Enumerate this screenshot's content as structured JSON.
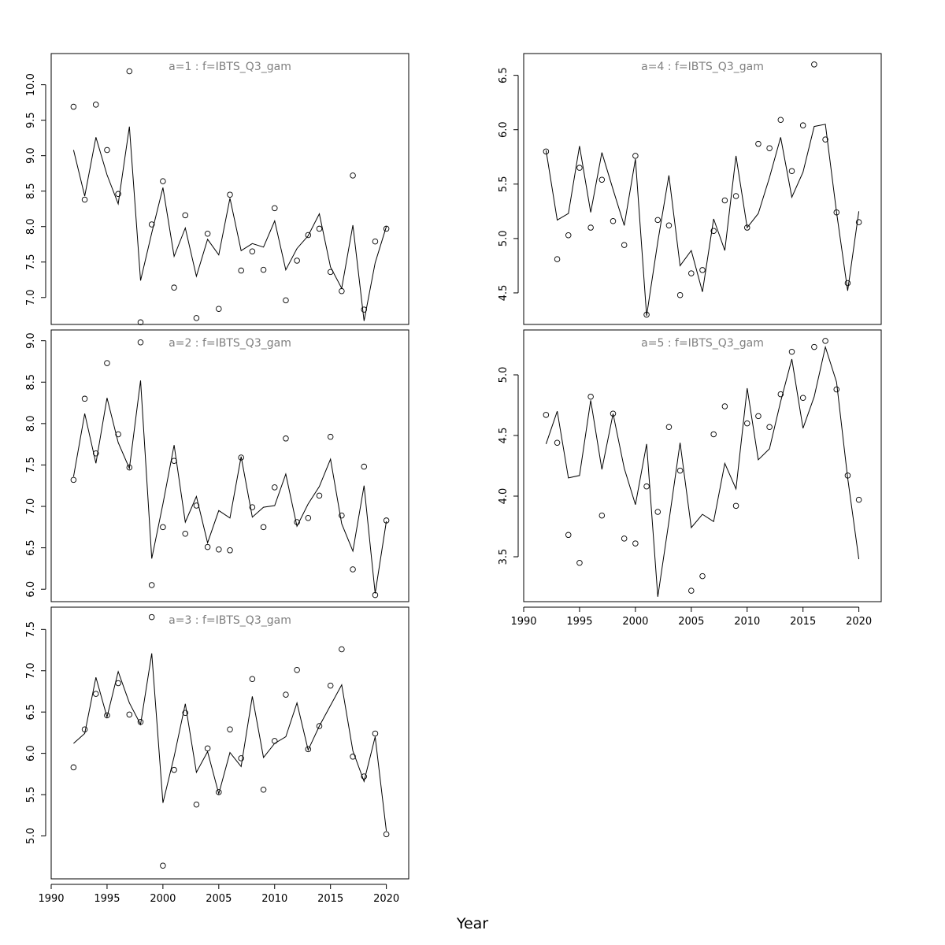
{
  "figure": {
    "xlabel": "Year"
  },
  "chart_data": [
    {
      "type": "scatter",
      "title": "a=1 : f=IBTS_Q3_gam",
      "xlim": [
        1990,
        2022
      ],
      "ylim": [
        6.62,
        10.44
      ],
      "x_ticks": [
        1990,
        1995,
        2000,
        2005,
        2010,
        2015,
        2020
      ],
      "x_ticks_shown": false,
      "y_ticks": [
        7.0,
        7.5,
        8.0,
        8.5,
        9.0,
        9.5,
        10.0
      ],
      "y_tick_labels": [
        "7.0",
        "7.5",
        "8.0",
        "8.5",
        "9.0",
        "9.5",
        "10.0"
      ],
      "series": [
        {
          "kind": "points",
          "x": [
            1992,
            1993,
            1994,
            1995,
            1996,
            1997,
            1998,
            1999,
            2000,
            2001,
            2002,
            2003,
            2004,
            2005,
            2006,
            2007,
            2008,
            2009,
            2010,
            2011,
            2012,
            2013,
            2014,
            2015,
            2016,
            2017,
            2018,
            2019,
            2020
          ],
          "values": [
            9.69,
            8.38,
            9.72,
            9.08,
            8.46,
            10.19,
            6.65,
            8.03,
            8.64,
            7.14,
            8.16,
            6.71,
            7.9,
            6.84,
            8.45,
            7.38,
            7.65,
            7.39,
            8.26,
            6.96,
            7.52,
            7.88,
            7.97,
            7.36,
            7.09,
            8.72,
            6.83,
            7.79,
            7.97
          ]
        },
        {
          "kind": "line",
          "x": [
            1992,
            1993,
            1994,
            1995,
            1996,
            1997,
            1998,
            1999,
            2000,
            2001,
            2002,
            2003,
            2004,
            2005,
            2006,
            2007,
            2008,
            2009,
            2010,
            2011,
            2012,
            2013,
            2014,
            2015,
            2016,
            2017,
            2018,
            2019,
            2020
          ],
          "values": [
            9.08,
            8.43,
            9.26,
            8.73,
            8.32,
            9.41,
            7.24,
            7.91,
            8.55,
            7.58,
            7.98,
            7.3,
            7.82,
            7.6,
            8.4,
            7.66,
            7.76,
            7.71,
            8.08,
            7.39,
            7.69,
            7.87,
            8.18,
            7.43,
            7.13,
            8.02,
            6.67,
            7.49,
            8.0
          ]
        }
      ]
    },
    {
      "type": "scatter",
      "title": "a=2 : f=IBTS_Q3_gam",
      "xlim": [
        1990,
        2022
      ],
      "ylim": [
        5.85,
        9.13
      ],
      "x_ticks": [
        1990,
        1995,
        2000,
        2005,
        2010,
        2015,
        2020
      ],
      "x_ticks_shown": false,
      "y_ticks": [
        6.0,
        6.5,
        7.0,
        7.5,
        8.0,
        8.5,
        9.0
      ],
      "y_tick_labels": [
        "6.0",
        "6.5",
        "7.0",
        "7.5",
        "8.0",
        "8.5",
        "9.0"
      ],
      "series": [
        {
          "kind": "points",
          "x": [
            1992,
            1993,
            1994,
            1995,
            1996,
            1997,
            1998,
            1999,
            2000,
            2001,
            2002,
            2003,
            2004,
            2005,
            2006,
            2007,
            2008,
            2009,
            2010,
            2011,
            2012,
            2013,
            2014,
            2015,
            2016,
            2017,
            2018,
            2019,
            2020
          ],
          "values": [
            7.32,
            8.3,
            7.64,
            8.73,
            7.87,
            7.47,
            8.98,
            6.05,
            6.75,
            7.55,
            6.67,
            7.01,
            6.51,
            6.48,
            6.47,
            7.59,
            6.99,
            6.75,
            7.23,
            7.82,
            6.81,
            6.86,
            7.13,
            7.84,
            6.89,
            6.24,
            7.48,
            5.93,
            6.83
          ]
        },
        {
          "kind": "line",
          "x": [
            1992,
            1993,
            1994,
            1995,
            1996,
            1997,
            1998,
            1999,
            2000,
            2001,
            2002,
            2003,
            2004,
            2005,
            2006,
            2007,
            2008,
            2009,
            2010,
            2011,
            2012,
            2013,
            2014,
            2015,
            2016,
            2017,
            2018,
            2019,
            2020
          ],
          "values": [
            7.36,
            8.12,
            7.52,
            8.31,
            7.77,
            7.46,
            8.52,
            6.37,
            7.03,
            7.74,
            6.81,
            7.12,
            6.56,
            6.95,
            6.86,
            7.6,
            6.87,
            6.99,
            7.01,
            7.39,
            6.76,
            7.03,
            7.24,
            7.57,
            6.79,
            6.46,
            7.25,
            5.95,
            6.82
          ]
        }
      ]
    },
    {
      "type": "scatter",
      "title": "a=3 : f=IBTS_Q3_gam",
      "xlim": [
        1990,
        2022
      ],
      "ylim": [
        4.48,
        7.77
      ],
      "x_ticks": [
        1990,
        1995,
        2000,
        2005,
        2010,
        2015,
        2020
      ],
      "x_tick_labels": [
        "1990",
        "1995",
        "2000",
        "2005",
        "2010",
        "2015",
        "2020"
      ],
      "x_ticks_shown": true,
      "y_ticks": [
        5.0,
        5.5,
        6.0,
        6.5,
        7.0,
        7.5
      ],
      "y_tick_labels": [
        "5.0",
        "5.5",
        "6.0",
        "6.5",
        "7.0",
        "7.5"
      ],
      "series": [
        {
          "kind": "points",
          "x": [
            1992,
            1993,
            1994,
            1995,
            1996,
            1997,
            1998,
            1999,
            2000,
            2001,
            2002,
            2003,
            2004,
            2005,
            2006,
            2007,
            2008,
            2009,
            2010,
            2011,
            2012,
            2013,
            2014,
            2015,
            2016,
            2017,
            2018,
            2019,
            2020
          ],
          "values": [
            5.83,
            6.29,
            6.72,
            6.46,
            6.85,
            6.47,
            6.38,
            7.65,
            4.64,
            5.8,
            6.49,
            5.38,
            6.06,
            5.53,
            6.29,
            5.94,
            6.9,
            5.56,
            6.15,
            6.71,
            7.01,
            6.05,
            6.33,
            6.82,
            7.26,
            5.96,
            5.72,
            6.24,
            5.02
          ]
        },
        {
          "kind": "line",
          "x": [
            1992,
            1993,
            1994,
            1995,
            1996,
            1997,
            1998,
            1999,
            2000,
            2001,
            2002,
            2003,
            2004,
            2005,
            2006,
            2007,
            2008,
            2009,
            2010,
            2011,
            2012,
            2013,
            2014,
            2015,
            2016,
            2017,
            2018,
            2019,
            2020
          ],
          "values": [
            6.12,
            6.24,
            6.92,
            6.44,
            6.99,
            6.61,
            6.35,
            7.21,
            5.4,
            5.96,
            6.6,
            5.77,
            6.02,
            5.51,
            6.01,
            5.84,
            6.69,
            5.95,
            6.12,
            6.2,
            6.61,
            6.04,
            6.33,
            6.58,
            6.83,
            6.03,
            5.66,
            6.2,
            5.06
          ]
        }
      ]
    },
    {
      "type": "scatter",
      "title": "a=4 : f=IBTS_Q3_gam",
      "xlim": [
        1990,
        2022
      ],
      "ylim": [
        4.21,
        6.7
      ],
      "x_ticks": [
        1990,
        1995,
        2000,
        2005,
        2010,
        2015,
        2020
      ],
      "x_ticks_shown": false,
      "y_ticks": [
        4.5,
        5.0,
        5.5,
        6.0,
        6.5
      ],
      "y_tick_labels": [
        "4.5",
        "5.0",
        "5.5",
        "6.0",
        "6.5"
      ],
      "series": [
        {
          "kind": "points",
          "x": [
            1992,
            1993,
            1994,
            1995,
            1996,
            1997,
            1998,
            1999,
            2000,
            2001,
            2002,
            2003,
            2004,
            2005,
            2006,
            2007,
            2008,
            2009,
            2010,
            2011,
            2012,
            2013,
            2014,
            2015,
            2016,
            2017,
            2018,
            2019,
            2020
          ],
          "values": [
            5.8,
            4.81,
            5.03,
            5.65,
            5.1,
            5.54,
            5.16,
            4.94,
            5.76,
            4.3,
            5.17,
            5.12,
            4.48,
            4.68,
            4.71,
            5.07,
            5.35,
            5.39,
            5.1,
            5.87,
            5.83,
            6.09,
            5.62,
            6.04,
            6.6,
            5.91,
            5.24,
            4.59,
            5.15
          ]
        },
        {
          "kind": "line",
          "x": [
            1992,
            1993,
            1994,
            1995,
            1996,
            1997,
            1998,
            1999,
            2000,
            2001,
            2002,
            2003,
            2004,
            2005,
            2006,
            2007,
            2008,
            2009,
            2010,
            2011,
            2012,
            2013,
            2014,
            2015,
            2016,
            2017,
            2018,
            2019,
            2020
          ],
          "values": [
            5.81,
            5.17,
            5.23,
            5.85,
            5.24,
            5.79,
            5.45,
            5.12,
            5.73,
            4.29,
            4.97,
            5.58,
            4.75,
            4.89,
            4.51,
            5.18,
            4.89,
            5.76,
            5.1,
            5.23,
            5.56,
            5.93,
            5.38,
            5.61,
            6.03,
            6.05,
            5.24,
            4.52,
            5.25
          ]
        }
      ]
    },
    {
      "type": "scatter",
      "title": "a=5 : f=IBTS_Q3_gam",
      "xlim": [
        1990,
        2022
      ],
      "ylim": [
        3.13,
        5.37
      ],
      "x_ticks": [
        1990,
        1995,
        2000,
        2005,
        2010,
        2015,
        2020
      ],
      "x_tick_labels": [
        "1990",
        "1995",
        "2000",
        "2005",
        "2010",
        "2015",
        "2020"
      ],
      "x_ticks_shown": true,
      "y_ticks": [
        3.5,
        4.0,
        4.5,
        5.0
      ],
      "y_tick_labels": [
        "3.5",
        "4.0",
        "4.5",
        "5.0"
      ],
      "series": [
        {
          "kind": "points",
          "x": [
            1992,
            1993,
            1994,
            1995,
            1996,
            1997,
            1998,
            1999,
            2000,
            2001,
            2002,
            2003,
            2004,
            2005,
            2006,
            2007,
            2008,
            2009,
            2010,
            2011,
            2012,
            2013,
            2014,
            2015,
            2016,
            2017,
            2018,
            2019,
            2020
          ],
          "values": [
            4.67,
            4.44,
            3.68,
            3.45,
            4.82,
            3.84,
            4.68,
            3.65,
            3.61,
            4.08,
            3.87,
            4.57,
            4.21,
            3.22,
            3.34,
            4.51,
            4.74,
            3.92,
            4.6,
            4.66,
            4.57,
            4.84,
            5.19,
            4.81,
            5.23,
            5.28,
            4.88,
            4.17,
            3.97
          ]
        },
        {
          "kind": "line",
          "x": [
            1992,
            1993,
            1994,
            1995,
            1996,
            1997,
            1998,
            1999,
            2000,
            2001,
            2002,
            2003,
            2004,
            2005,
            2006,
            2007,
            2008,
            2009,
            2010,
            2011,
            2012,
            2013,
            2014,
            2015,
            2016,
            2017,
            2018,
            2019,
            2020
          ],
          "values": [
            4.43,
            4.7,
            4.15,
            4.17,
            4.79,
            4.22,
            4.68,
            4.23,
            3.93,
            4.43,
            3.17,
            3.79,
            4.44,
            3.74,
            3.85,
            3.79,
            4.27,
            4.06,
            4.89,
            4.3,
            4.39,
            4.78,
            5.13,
            4.56,
            4.82,
            5.23,
            4.94,
            4.15,
            3.48
          ]
        }
      ]
    }
  ]
}
